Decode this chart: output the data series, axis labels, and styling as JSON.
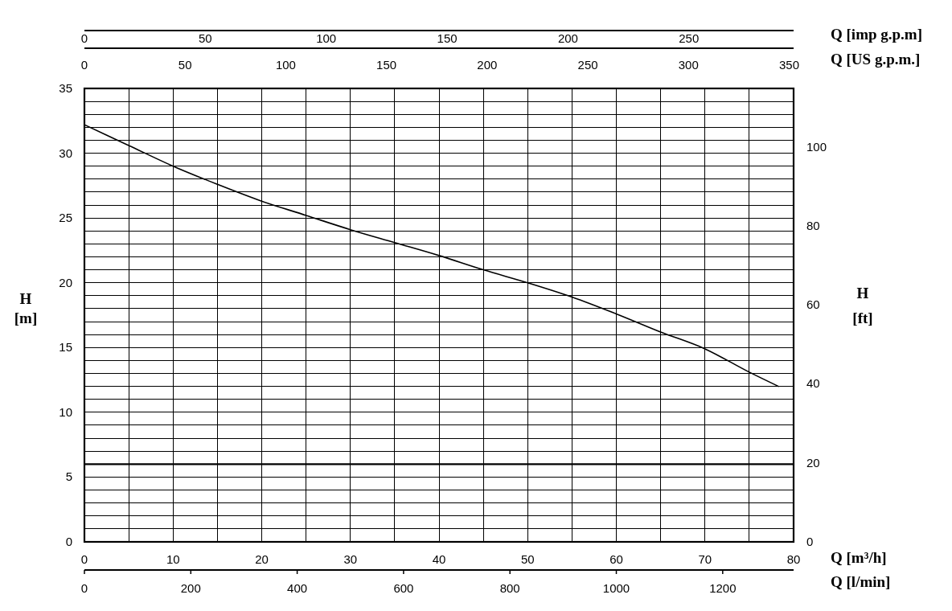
{
  "chart_data": [
    {
      "type": "line",
      "xlabel": "Q [m³/h]",
      "ylabel": "H [m]",
      "y2label": "H [ft]",
      "x2label": "Q [US g.p.m.]",
      "series": [
        {
          "color": "#000000",
          "x": [
            0,
            5,
            10,
            15,
            20,
            25,
            30,
            35,
            40,
            45,
            50,
            55,
            60,
            65,
            70,
            75,
            78.3
          ],
          "values": [
            32.2,
            30.6,
            29.0,
            27.6,
            26.3,
            25.2,
            24.1,
            23.1,
            22.1,
            21.0,
            20.0,
            18.9,
            17.6,
            16.2,
            14.9,
            13.1,
            12.0
          ]
        }
      ],
      "xlim": [
        0,
        80
      ],
      "xticks": [
        0,
        {
          "value": 5,
          "label": null
        },
        10,
        {
          "value": 15,
          "label": null
        },
        20,
        {
          "value": 25,
          "label": null
        },
        30,
        {
          "value": 35,
          "label": null
        },
        40,
        {
          "value": 45,
          "label": null
        },
        50,
        {
          "value": 55,
          "label": null
        },
        60,
        {
          "value": 65,
          "label": null
        },
        70,
        {
          "value": 75,
          "label": null
        },
        80
      ],
      "ylim": [
        0,
        35
      ],
      "yticks": [
        0,
        {
          "value": 1,
          "label": null
        },
        {
          "value": 2,
          "label": null
        },
        {
          "value": 3,
          "label": null
        },
        {
          "value": 4,
          "label": null
        },
        5,
        {
          "value": 6,
          "label": null
        },
        {
          "value": 7,
          "label": null
        },
        {
          "value": 8,
          "label": null
        },
        {
          "value": 9,
          "label": null
        },
        10,
        {
          "value": 11,
          "label": null
        },
        {
          "value": 12,
          "label": null
        },
        {
          "value": 13,
          "label": null
        },
        {
          "value": 14,
          "label": null
        },
        15,
        {
          "value": 16,
          "label": null
        },
        {
          "value": 17,
          "label": null
        },
        {
          "value": 18,
          "label": null
        },
        {
          "value": 19,
          "label": null
        },
        20,
        {
          "value": 21,
          "label": null
        },
        {
          "value": 22,
          "label": null
        },
        {
          "value": 23,
          "label": null
        },
        {
          "value": 24,
          "label": null
        },
        25,
        {
          "value": 26,
          "label": null
        },
        {
          "value": 27,
          "label": null
        },
        {
          "value": 28,
          "label": null
        },
        {
          "value": 29,
          "label": null
        },
        30,
        {
          "value": 31,
          "label": null
        },
        {
          "value": 32,
          "label": null
        },
        {
          "value": 33,
          "label": null
        },
        {
          "value": 34,
          "label": null
        },
        35
      ],
      "y2lim": [
        0,
        114.8
      ],
      "y2ticks": [
        0,
        20,
        40,
        60,
        80,
        100
      ],
      "x2lim": [
        0,
        352.2
      ],
      "x2ticks": [
        0,
        50,
        100,
        150,
        200,
        250,
        300,
        350
      ],
      "grid": true,
      "ref_lines": [
        {
          "axis": "y",
          "value": 6,
          "color": "#000000"
        }
      ]
    },
    {
      "type": "line",
      "xlabel": "Q [l/min]",
      "x2label": "Q [imp g.p.m]",
      "xlim": [
        0,
        1333.3
      ],
      "xticks": [
        0,
        200,
        400,
        600,
        800,
        1000,
        1200
      ],
      "x2lim": [
        0,
        293.3
      ],
      "x2ticks": [
        0,
        50,
        100,
        150,
        200,
        250
      ],
      "ylim": [
        0,
        35
      ],
      "tick_labels": "x"
    }
  ]
}
